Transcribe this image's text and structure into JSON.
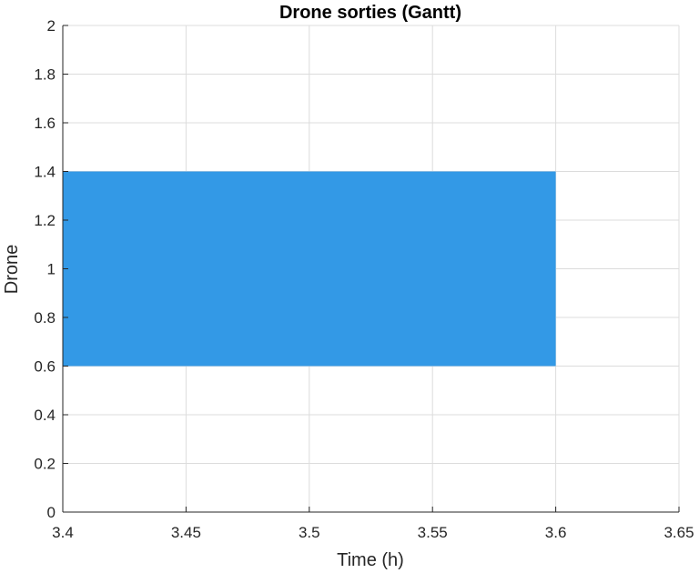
{
  "chart_data": {
    "type": "gantt",
    "title": "Drone sorties (Gantt)",
    "xlabel": "Time (h)",
    "ylabel": "Drone",
    "xlim": [
      3.4,
      3.65
    ],
    "ylim": [
      0,
      2
    ],
    "xticks": [
      "3.4",
      "3.45",
      "3.5",
      "3.55",
      "3.6",
      "3.65"
    ],
    "yticks": [
      "0",
      "0.2",
      "0.4",
      "0.6",
      "0.8",
      "1",
      "1.2",
      "1.4",
      "1.6",
      "1.8",
      "2"
    ],
    "grid": true,
    "bars": [
      {
        "drone": 1,
        "start": 3.4,
        "end": 3.6,
        "y_low": 0.6,
        "y_high": 1.4,
        "color": "#3399e6"
      }
    ]
  }
}
